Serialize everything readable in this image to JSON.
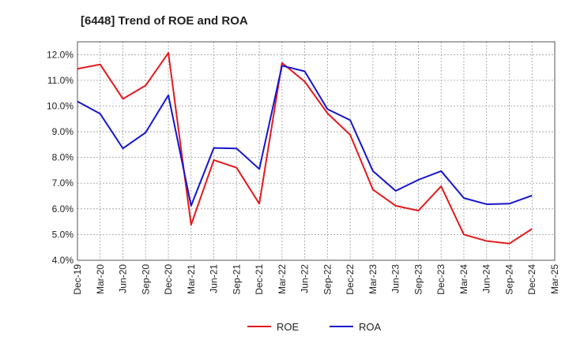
{
  "chart_data": {
    "type": "line",
    "title": "[6448]  Trend of ROE and ROA",
    "xlabel": "",
    "ylabel": "",
    "ylim": [
      4.0,
      12.5
    ],
    "yticks": [
      4.0,
      5.0,
      6.0,
      7.0,
      8.0,
      9.0,
      10.0,
      11.0,
      12.0
    ],
    "ytick_labels": [
      "4.0%",
      "5.0%",
      "6.0%",
      "7.0%",
      "8.0%",
      "9.0%",
      "10.0%",
      "11.0%",
      "12.0%"
    ],
    "x": [
      "Dec-19",
      "Mar-20",
      "Jun-20",
      "Sep-20",
      "Dec-20",
      "Mar-21",
      "Jun-21",
      "Sep-21",
      "Dec-21",
      "Mar-22",
      "Jun-22",
      "Sep-22",
      "Dec-22",
      "Mar-23",
      "Jun-23",
      "Sep-23",
      "Dec-23",
      "Mar-24",
      "Jun-24",
      "Sep-24",
      "Dec-24",
      "Mar-25"
    ],
    "grid": true,
    "legend_position": "bottom-center",
    "series": [
      {
        "name": "ROE",
        "color": "#e31a1c",
        "values": [
          11.45,
          11.62,
          10.28,
          10.8,
          12.07,
          5.38,
          7.9,
          7.6,
          6.2,
          11.68,
          10.95,
          9.72,
          8.88,
          6.75,
          6.12,
          5.93,
          6.88,
          5.0,
          4.75,
          4.65,
          5.22,
          null
        ]
      },
      {
        "name": "ROA",
        "color": "#1515cc",
        "values": [
          10.18,
          9.7,
          8.35,
          8.97,
          10.42,
          6.12,
          8.37,
          8.35,
          7.55,
          11.57,
          11.35,
          9.88,
          9.45,
          7.47,
          6.7,
          7.13,
          7.47,
          6.42,
          6.18,
          6.2,
          6.52,
          null
        ]
      }
    ]
  }
}
